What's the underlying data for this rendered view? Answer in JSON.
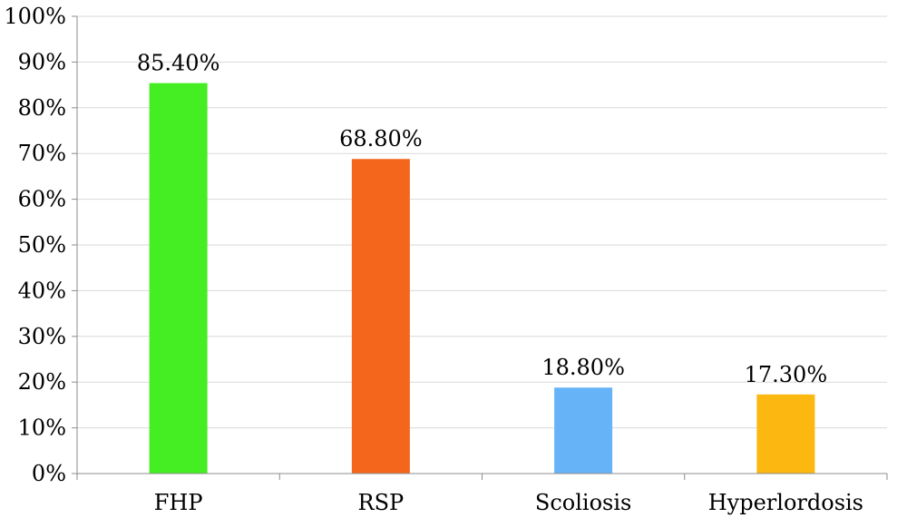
{
  "chart_data": {
    "type": "bar",
    "title": "",
    "xlabel": "",
    "ylabel": "",
    "categories": [
      "FHP",
      "RSP",
      "Scoliosis",
      "Hyperlordosis"
    ],
    "values": [
      85.4,
      68.8,
      18.8,
      17.3
    ],
    "data_labels": [
      "85.40%",
      "68.80%",
      "18.80%",
      "17.30%"
    ],
    "colors": [
      "#44ee22",
      "#f4661c",
      "#66b3f7",
      "#fcb711"
    ],
    "ylim": [
      0,
      100
    ],
    "yticks": [
      0,
      10,
      20,
      30,
      40,
      50,
      60,
      70,
      80,
      90,
      100
    ],
    "ytick_labels": [
      "0%",
      "10%",
      "20%",
      "30%",
      "40%",
      "50%",
      "60%",
      "70%",
      "80%",
      "90%",
      "100%"
    ],
    "grid": true,
    "legend": "none"
  }
}
